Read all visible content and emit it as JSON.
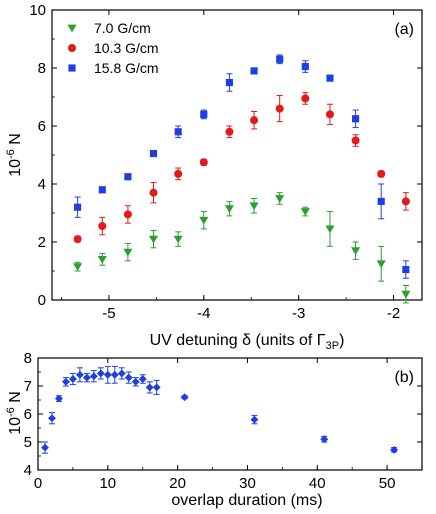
{
  "chart_data": [
    {
      "type": "scatter",
      "panel_label": "(a)",
      "xlabel_main": "UV detuning δ (units of Γ",
      "xlabel_sub": "3P",
      "xlabel_close": ")",
      "ylabel_base": "10",
      "ylabel_exp": "-6",
      "ylabel_unit": " N",
      "xlim": [
        -5.6,
        -1.7
      ],
      "ylim": [
        0,
        10
      ],
      "x_ticks": [
        -5,
        -4,
        -3,
        -2
      ],
      "x_tick_labels": [
        "-5",
        "-4",
        "-3",
        "-2"
      ],
      "y_ticks": [
        0,
        2,
        4,
        6,
        8,
        10
      ],
      "y_tick_labels": [
        "0",
        "2",
        "4",
        "6",
        "8",
        "10"
      ],
      "legend_position": "top-left",
      "grid": false,
      "series": [
        {
          "name": "7.0 G/cm",
          "color": "#2ca02c",
          "marker": "triangle-down",
          "x": [
            -5.33,
            -5.07,
            -4.8,
            -4.53,
            -4.27,
            -4.0,
            -3.73,
            -3.47,
            -3.2,
            -2.93,
            -2.67,
            -2.4,
            -2.13,
            -1.87
          ],
          "y": [
            1.15,
            1.4,
            1.65,
            2.1,
            2.1,
            2.75,
            3.15,
            3.25,
            3.5,
            3.05,
            2.45,
            1.7,
            1.25,
            0.2
          ],
          "err": [
            0.15,
            0.2,
            0.3,
            0.3,
            0.25,
            0.3,
            0.25,
            0.25,
            0.2,
            0.15,
            0.6,
            0.3,
            0.6,
            0.3
          ]
        },
        {
          "name": "10.3 G/cm",
          "color": "#e31a1c",
          "marker": "circle",
          "x": [
            -5.33,
            -5.07,
            -4.8,
            -4.53,
            -4.27,
            -4.0,
            -3.73,
            -3.47,
            -3.2,
            -2.93,
            -2.67,
            -2.4,
            -2.13,
            -1.87
          ],
          "y": [
            2.1,
            2.55,
            2.95,
            3.7,
            4.35,
            4.75,
            5.8,
            6.2,
            6.6,
            6.95,
            6.4,
            5.5,
            4.35,
            3.4
          ],
          "err": [
            0.1,
            0.3,
            0.3,
            0.35,
            0.2,
            0.1,
            0.2,
            0.3,
            0.45,
            0.2,
            0.35,
            0.2,
            0.1,
            0.3
          ]
        },
        {
          "name": "15.8 G/cm",
          "color": "#1f3fe0",
          "marker": "square",
          "x": [
            -5.33,
            -5.07,
            -4.8,
            -4.53,
            -4.27,
            -4.0,
            -3.73,
            -3.47,
            -3.2,
            -2.93,
            -2.67,
            -2.4,
            -2.13,
            -1.87
          ],
          "y": [
            3.2,
            3.8,
            4.25,
            5.05,
            5.8,
            6.4,
            7.5,
            7.9,
            8.3,
            8.05,
            7.65,
            6.25,
            3.4,
            1.05
          ],
          "err": [
            0.35,
            0.1,
            0.1,
            0.1,
            0.2,
            0.15,
            0.3,
            0.1,
            0.15,
            0.2,
            0.1,
            0.3,
            0.6,
            0.3
          ]
        }
      ]
    },
    {
      "type": "scatter",
      "panel_label": "(b)",
      "xlabel": "overlap duration (ms)",
      "ylabel_base": "10",
      "ylabel_exp": "-6",
      "ylabel_unit": " N",
      "xlim": [
        0,
        55
      ],
      "ylim": [
        4,
        8
      ],
      "x_ticks": [
        0,
        10,
        20,
        30,
        40,
        50
      ],
      "x_tick_labels": [
        "0",
        "10",
        "20",
        "30",
        "40",
        "50"
      ],
      "y_ticks": [
        4,
        5,
        6,
        7,
        8
      ],
      "y_tick_labels": [
        "4",
        "5",
        "6",
        "7",
        "8"
      ],
      "grid": false,
      "series": [
        {
          "color": "#1f3fe0",
          "marker": "diamond",
          "x": [
            1,
            2,
            3,
            4,
            5,
            6,
            7,
            8,
            9,
            10,
            11,
            12,
            13,
            14,
            15,
            16,
            17,
            21,
            31,
            41,
            51
          ],
          "y": [
            4.8,
            5.85,
            6.55,
            7.15,
            7.25,
            7.4,
            7.3,
            7.35,
            7.45,
            7.4,
            7.4,
            7.45,
            7.3,
            7.15,
            7.25,
            6.95,
            6.95,
            6.6,
            5.8,
            5.1,
            4.72
          ],
          "err": [
            0.2,
            0.2,
            0.1,
            0.15,
            0.2,
            0.25,
            0.15,
            0.2,
            0.2,
            0.3,
            0.3,
            0.2,
            0.2,
            0.15,
            0.15,
            0.2,
            0.25,
            0.05,
            0.15,
            0.1,
            0.08
          ]
        }
      ]
    }
  ]
}
